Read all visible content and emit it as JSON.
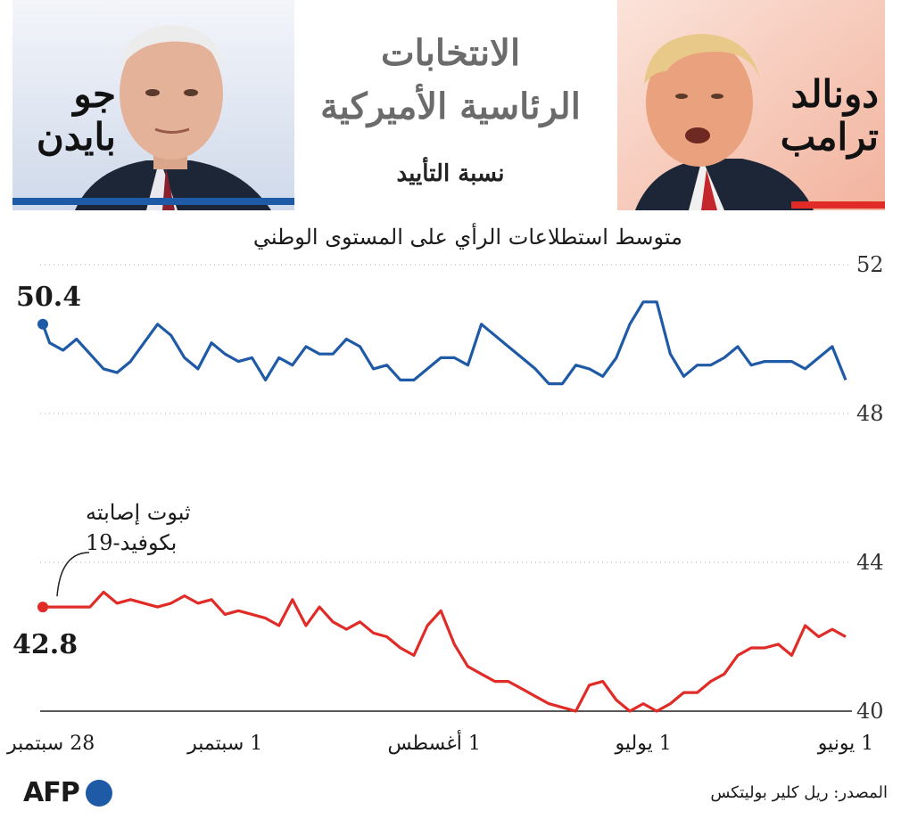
{
  "header": {
    "title_line1": "الانتخابات",
    "title_line2": "الرئاسية الأميركية",
    "subtitle": "نسبة التأييد"
  },
  "candidates": {
    "biden": {
      "name_line1": "جو",
      "name_line2": "بايدن",
      "color": "#1f5aa6"
    },
    "trump": {
      "name_line1": "دونالد",
      "name_line2": "ترامب",
      "color": "#e02b27"
    }
  },
  "footer": {
    "source": "المصدر: ريل كلير بوليتكس",
    "logo": "AFP"
  },
  "annotation": {
    "line1": "ثبوت إصابته",
    "line2": "بكوفيد-19"
  },
  "chart_data": {
    "type": "line",
    "title": "متوسط استطلاعات الرأي على المستوى الوطني",
    "ylim": [
      40,
      52
    ],
    "yticks": [
      52,
      48,
      44,
      40
    ],
    "grid": "dotted horizontal",
    "x": [
      "2020-06-01",
      "2020-06-03",
      "2020-06-05",
      "2020-06-07",
      "2020-06-09",
      "2020-06-11",
      "2020-06-13",
      "2020-06-15",
      "2020-06-17",
      "2020-06-19",
      "2020-06-21",
      "2020-06-23",
      "2020-06-25",
      "2020-06-27",
      "2020-06-29",
      "2020-07-01",
      "2020-07-03",
      "2020-07-05",
      "2020-07-07",
      "2020-07-09",
      "2020-07-11",
      "2020-07-13",
      "2020-07-15",
      "2020-07-17",
      "2020-07-19",
      "2020-07-21",
      "2020-07-23",
      "2020-07-25",
      "2020-07-27",
      "2020-07-29",
      "2020-07-31",
      "2020-08-02",
      "2020-08-04",
      "2020-08-06",
      "2020-08-08",
      "2020-08-10",
      "2020-08-12",
      "2020-08-14",
      "2020-08-16",
      "2020-08-18",
      "2020-08-20",
      "2020-08-22",
      "2020-08-24",
      "2020-08-26",
      "2020-08-28",
      "2020-08-30",
      "2020-09-01",
      "2020-09-03",
      "2020-09-05",
      "2020-09-07",
      "2020-09-09",
      "2020-09-11",
      "2020-09-13",
      "2020-09-15",
      "2020-09-17",
      "2020-09-19",
      "2020-09-21",
      "2020-09-23",
      "2020-09-25",
      "2020-09-27",
      "2020-09-28"
    ],
    "xtick_labels": [
      {
        "date": "2020-06-01",
        "label": "1 يونيو"
      },
      {
        "date": "2020-07-01",
        "label": "1 يوليو"
      },
      {
        "date": "2020-08-01",
        "label": "1 أغسطس"
      },
      {
        "date": "2020-09-01",
        "label": "1 سبتمبر"
      },
      {
        "date": "2020-09-28",
        "label": "28 سبتمبر"
      }
    ],
    "series": [
      {
        "name": "جو بايدن",
        "color": "#1f5aa6",
        "values": [
          48.9,
          49.8,
          49.5,
          49.2,
          49.4,
          49.4,
          49.4,
          49.3,
          49.8,
          49.5,
          49.3,
          49.3,
          49.0,
          49.6,
          51.0,
          51.0,
          50.4,
          49.5,
          49.0,
          49.2,
          49.3,
          48.8,
          48.8,
          49.2,
          49.5,
          49.8,
          50.1,
          50.4,
          49.3,
          49.5,
          49.5,
          49.2,
          48.9,
          48.9,
          49.3,
          49.2,
          49.8,
          50.0,
          49.6,
          49.6,
          49.8,
          49.3,
          49.5,
          48.9,
          49.5,
          49.4,
          49.6,
          49.9,
          49.2,
          49.5,
          50.1,
          50.4,
          49.9,
          49.4,
          49.1,
          49.2,
          49.6,
          50.0,
          49.7,
          49.9,
          50.4
        ],
        "end_value": 50.4
      },
      {
        "name": "دونالد ترامب",
        "color": "#e02b27",
        "values": [
          42.0,
          42.2,
          42.0,
          42.3,
          41.5,
          41.8,
          41.7,
          41.7,
          41.5,
          41.0,
          40.8,
          40.5,
          40.5,
          40.2,
          40.0,
          40.2,
          40.0,
          40.3,
          40.8,
          40.7,
          40.0,
          40.1,
          40.2,
          40.4,
          40.6,
          40.8,
          40.8,
          41.0,
          41.2,
          41.8,
          42.7,
          42.3,
          41.5,
          41.7,
          42.0,
          42.1,
          42.4,
          42.2,
          42.4,
          42.8,
          42.3,
          43.0,
          42.3,
          42.5,
          42.6,
          42.7,
          42.6,
          43.0,
          42.9,
          43.1,
          42.9,
          42.8,
          42.9,
          43.0,
          42.9,
          43.2,
          42.8,
          42.8,
          42.8,
          42.8,
          42.8
        ],
        "end_value": 42.8
      }
    ]
  }
}
